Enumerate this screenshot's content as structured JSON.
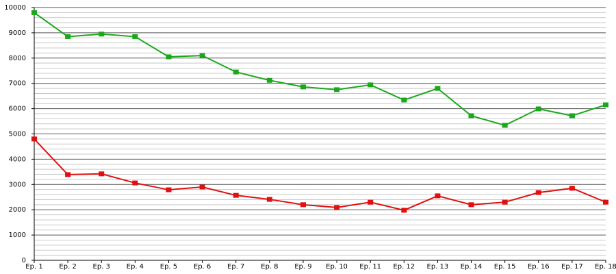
{
  "chart_data": {
    "type": "line",
    "categories": [
      "Ep. 1",
      "Ep. 2",
      "Ep. 3",
      "Ep. 4",
      "Ep. 5",
      "Ep. 6",
      "Ep. 7",
      "Ep. 8",
      "Ep. 9",
      "Ep. 10",
      "Ep. 11",
      "Ep. 12",
      "Ep. 13",
      "Ep. 14",
      "Ep. 15",
      "Ep. 16",
      "Ep. 17",
      "Ep. 18"
    ],
    "series": [
      {
        "color": "#1aa81a",
        "values": [
          9800,
          8850,
          8950,
          8850,
          8050,
          8100,
          7450,
          7120,
          6860,
          6750,
          6940,
          6340,
          6800,
          5720,
          5340,
          5990,
          5720,
          6150
        ]
      },
      {
        "color": "#e01010",
        "values": [
          4800,
          3390,
          3420,
          3060,
          2790,
          2900,
          2570,
          2410,
          2200,
          2090,
          2300,
          1980,
          2550,
          2200,
          2300,
          2680,
          2850,
          2300
        ]
      }
    ],
    "ylim": [
      0,
      10000
    ],
    "yticks": [
      0,
      1000,
      2000,
      3000,
      4000,
      5000,
      6000,
      7000,
      8000,
      9000,
      10000
    ],
    "grid": true,
    "minor_grid_divisions": 5
  }
}
